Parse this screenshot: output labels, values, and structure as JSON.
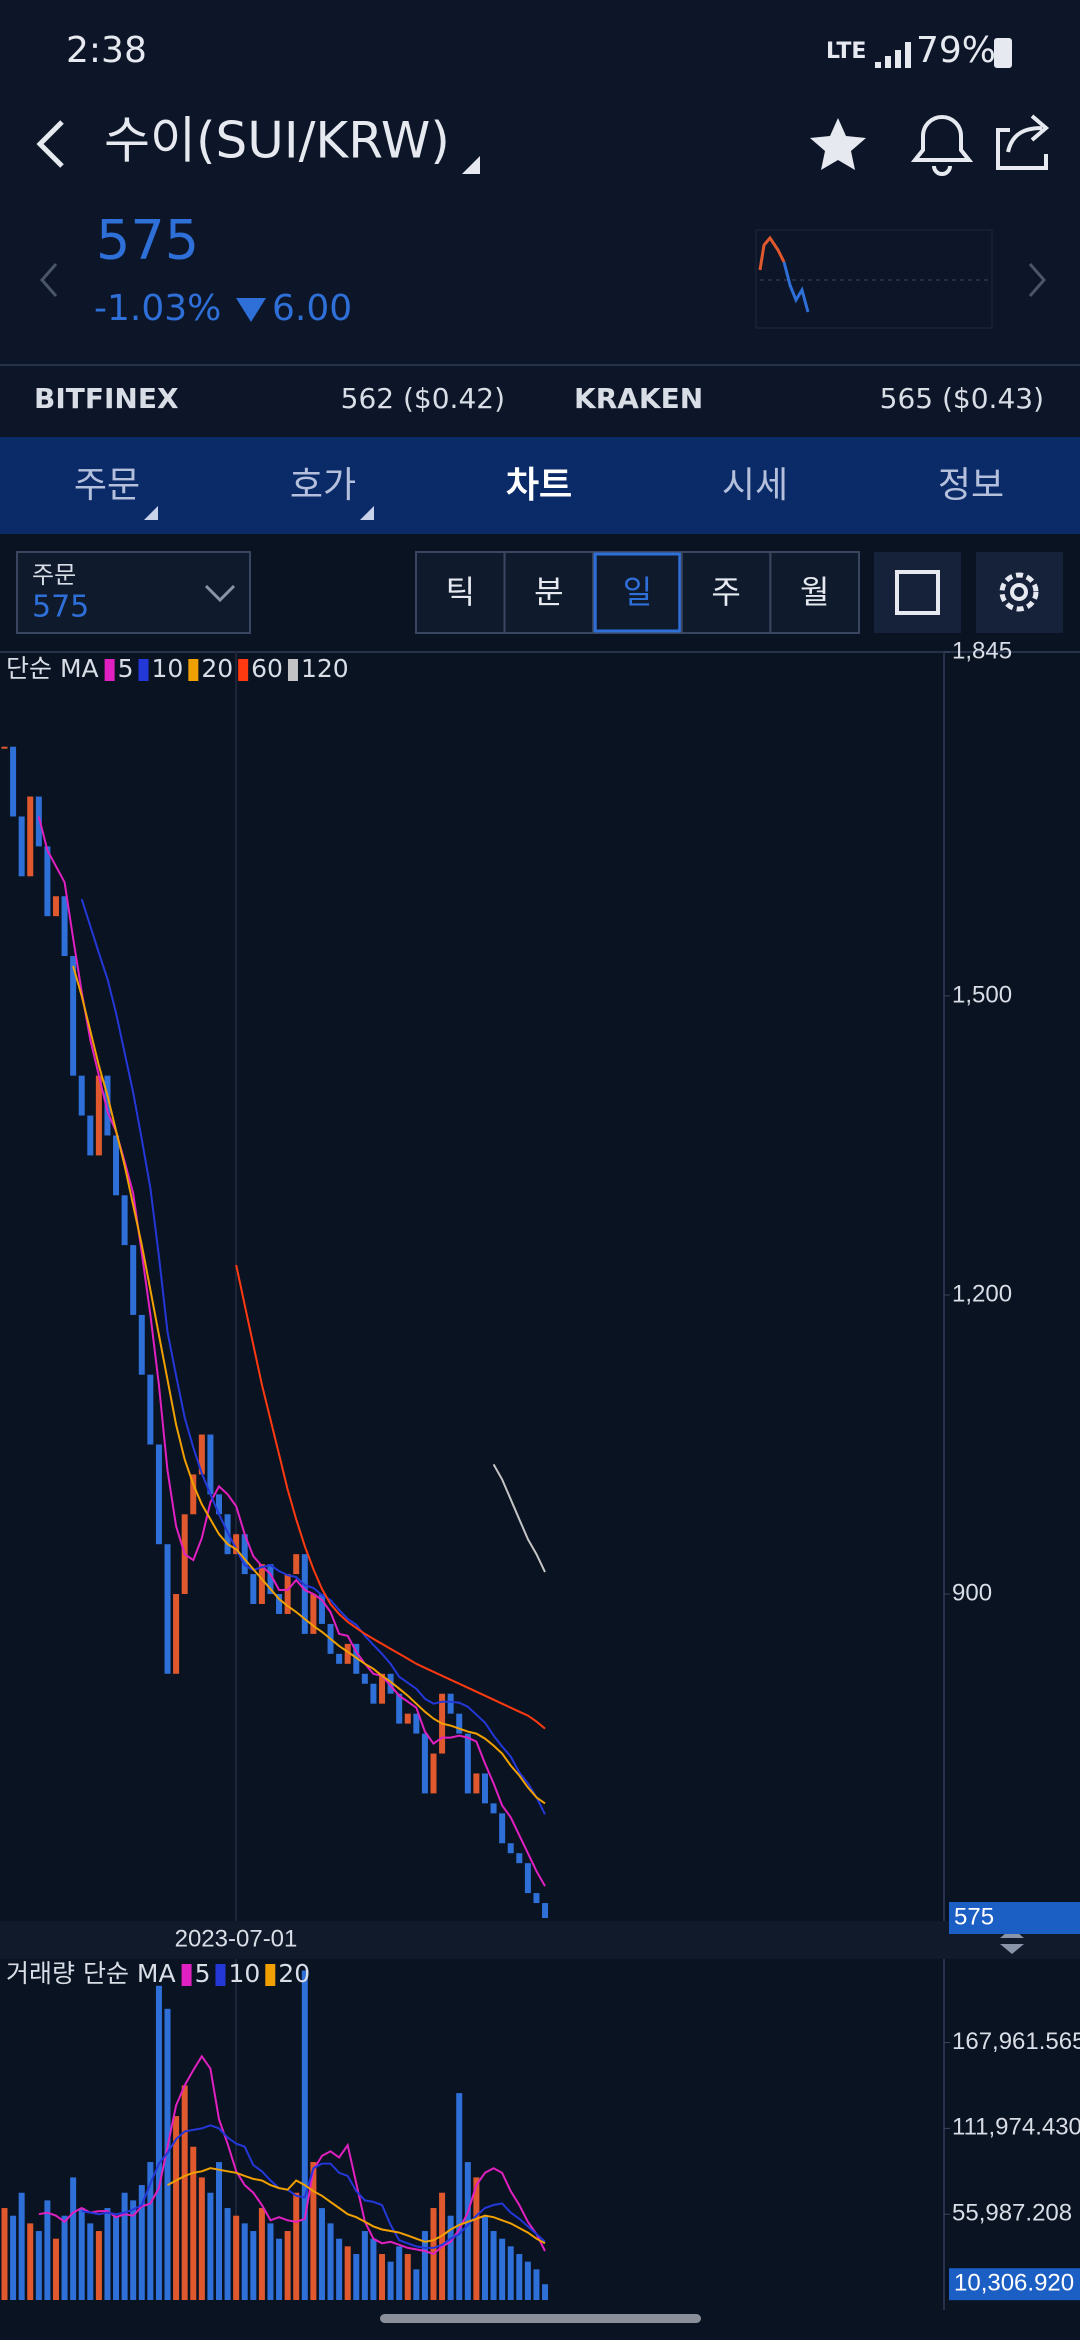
{
  "status_bar": {
    "time": "2:38",
    "network": "LTE",
    "battery": "79%"
  },
  "header": {
    "title": "수이(SUI/KRW)"
  },
  "ticker": {
    "price": "575",
    "change_percent": "-1.03%",
    "change": "6.00"
  },
  "exchanges": [
    {
      "name": "BITFINEX",
      "price": "562 ($0.42)"
    },
    {
      "name": "KRAKEN",
      "price": "565 ($0.43)"
    }
  ],
  "tabs": [
    "주문",
    "호가",
    "차트",
    "시세",
    "정보"
  ],
  "active_tab": 2,
  "order_select": {
    "label": "주문",
    "value": "575"
  },
  "periods": [
    "틱",
    "분",
    "일",
    "주",
    "월"
  ],
  "active_period": 2,
  "chart_data": [
    {
      "type": "candlestick",
      "title": "단순 MA",
      "date_label": "2023-07-01",
      "up_color": "#e0592e",
      "down_color": "#2e6fd8",
      "values": [
        1750,
        1680,
        1620,
        1700,
        1650,
        1580,
        1600,
        1540,
        1420,
        1380,
        1340,
        1420,
        1360,
        1300,
        1250,
        1180,
        1120,
        1050,
        950,
        820,
        900,
        980,
        1020,
        1060,
        1000,
        980,
        940,
        960,
        920,
        890,
        930,
        900,
        880,
        920,
        940,
        860,
        900,
        870,
        840,
        830,
        850,
        820,
        810,
        790,
        820,
        800,
        770,
        780,
        760,
        700,
        740,
        800,
        780,
        760,
        700,
        720,
        690,
        680,
        650,
        640,
        630,
        600,
        590,
        575
      ],
      "ylim": [
        572,
        1845
      ],
      "yticks": [
        {
          "value": 1845,
          "label": "1,845"
        },
        {
          "value": 1500,
          "label": "1,500"
        },
        {
          "value": 1200,
          "label": "1,200"
        },
        900
      ],
      "last_price": 575,
      "series": [
        {
          "name": "5",
          "color": "#e020c0",
          "values": [
            null,
            null,
            null,
            null,
            1680,
            1646,
            1630,
            1614,
            1558,
            1504,
            1456,
            1420,
            1384,
            1364,
            1334,
            1302,
            1242,
            1180,
            1110,
            1024,
            968,
            940,
            934,
            956,
            992,
            1008,
            1000,
            988,
            960,
            938,
            928,
            920,
            904,
            904,
            914,
            904,
            900,
            894,
            882,
            860,
            858,
            842,
            830,
            820,
            818,
            808,
            798,
            792,
            786,
            762,
            750,
            756,
            756,
            758,
            756,
            752,
            730,
            710,
            688,
            676,
            658,
            640,
            622,
            607
          ]
        },
        {
          "name": "10",
          "color": "#2438d8",
          "values": [
            null,
            null,
            null,
            null,
            null,
            null,
            null,
            null,
            null,
            1597,
            1570,
            1543,
            1517,
            1483,
            1443,
            1403,
            1356,
            1307,
            1239,
            1163,
            1119,
            1077,
            1047,
            1021,
            1000,
            980,
            962,
            945,
            929,
            924,
            927,
            929,
            923,
            919,
            917,
            909,
            906,
            899,
            894,
            884,
            875,
            869,
            858,
            849,
            840,
            830,
            817,
            811,
            805,
            795,
            790,
            792,
            792,
            791,
            787,
            779,
            771,
            758,
            747,
            737,
            721,
            710,
            696,
            679
          ]
        },
        {
          "name": "20",
          "color": "#f0a000",
          "values": [
            null,
            null,
            null,
            null,
            null,
            null,
            null,
            null,
            1530,
            1500,
            1465,
            1430,
            1400,
            1365,
            1330,
            1290,
            1250,
            1205,
            1160,
            1115,
            1070,
            1035,
            1010,
            990,
            975,
            960,
            950,
            945,
            935,
            925,
            915,
            905,
            895,
            888,
            882,
            875,
            868,
            862,
            855,
            848,
            842,
            836,
            830,
            825,
            818,
            812,
            805,
            798,
            790,
            782,
            775,
            770,
            768,
            765,
            762,
            760,
            755,
            748,
            740,
            728,
            718,
            706,
            696,
            690
          ]
        },
        {
          "name": "60",
          "color": "#ff3a10",
          "values": [
            null,
            null,
            null,
            null,
            null,
            null,
            null,
            null,
            null,
            null,
            null,
            null,
            null,
            null,
            null,
            null,
            null,
            null,
            null,
            null,
            null,
            null,
            null,
            null,
            null,
            null,
            null,
            1230,
            1190,
            1150,
            1110,
            1075,
            1040,
            1005,
            975,
            948,
            925,
            905,
            890,
            880,
            872,
            866,
            860,
            855,
            850,
            845,
            840,
            835,
            830,
            826,
            822,
            818,
            814,
            810,
            806,
            802,
            798,
            794,
            790,
            786,
            782,
            778,
            772,
            765
          ]
        },
        {
          "name": "120",
          "color": "#c4c4c4",
          "values": [
            null,
            null,
            null,
            null,
            null,
            null,
            null,
            null,
            null,
            null,
            null,
            null,
            null,
            null,
            null,
            null,
            null,
            null,
            null,
            null,
            null,
            null,
            null,
            null,
            null,
            null,
            null,
            null,
            null,
            null,
            null,
            null,
            null,
            null,
            null,
            null,
            null,
            null,
            null,
            null,
            null,
            null,
            null,
            null,
            null,
            null,
            null,
            null,
            null,
            null,
            null,
            null,
            null,
            null,
            null,
            null,
            null,
            1030,
            1015,
            995,
            975,
            955,
            940,
            922
          ]
        }
      ]
    },
    {
      "type": "bar",
      "title": "거래량 단순 MA",
      "values": [
        60000,
        55000,
        70000,
        50000,
        45000,
        65000,
        40000,
        55000,
        80000,
        60000,
        50000,
        45000,
        60000,
        55000,
        70000,
        65000,
        75000,
        90000,
        205000,
        190000,
        120000,
        140000,
        100000,
        80000,
        70000,
        90000,
        60000,
        55000,
        50000,
        45000,
        60000,
        50000,
        40000,
        45000,
        70000,
        215000,
        90000,
        60000,
        50000,
        40000,
        35000,
        30000,
        45000,
        40000,
        30000,
        25000,
        35000,
        30000,
        20000,
        45000,
        60000,
        70000,
        55000,
        135000,
        90000,
        80000,
        55000,
        45000,
        40000,
        35000,
        30000,
        25000,
        20000,
        10306.92
      ],
      "ylim": [
        0,
        222500
      ],
      "yticks": [
        {
          "value": 55987.208,
          "label": "55,987.208"
        },
        {
          "value": 111974.43,
          "label": "111,974.430"
        },
        {
          "value": 167961.565,
          "label": "167,961.565"
        }
      ],
      "last_value": {
        "value": 10306.92,
        "label": "10,306.920"
      },
      "series": [
        {
          "name": "5",
          "color": "#e020c0",
          "values": [
            null,
            null,
            null,
            null,
            56000,
            57000,
            55000,
            51000,
            57000,
            60000,
            57000,
            58000,
            58000,
            54000,
            56000,
            55000,
            61000,
            63000,
            73000,
            100000,
            127000,
            140000,
            150000,
            159000,
            151000,
            118000,
            102000,
            84000,
            75000,
            70000,
            62000,
            52000,
            54000,
            52000,
            51000,
            53000,
            85000,
            94000,
            97000,
            93000,
            101000,
            76000,
            51000,
            40000,
            37000,
            38000,
            36000,
            34000,
            33000,
            32000,
            30000,
            35000,
            38000,
            46000,
            57000,
            75000,
            83000,
            86000,
            83000,
            71000,
            62000,
            51000,
            43000,
            32000
          ]
        },
        {
          "name": "10",
          "color": "#2438d8",
          "values": [
            null,
            null,
            null,
            null,
            null,
            null,
            null,
            null,
            null,
            58000,
            57000,
            56000,
            57000,
            56000,
            57000,
            59000,
            62000,
            76000,
            89000,
            96000,
            105000,
            110000,
            111000,
            112000,
            114000,
            112000,
            106000,
            102000,
            100000,
            88000,
            84000,
            78000,
            73000,
            72000,
            68000,
            67000,
            86000,
            89000,
            89000,
            83000,
            81000,
            71000,
            65000,
            64000,
            62000,
            49000,
            39000,
            37000,
            35000,
            34000,
            34000,
            36000,
            40000,
            43000,
            49000,
            55000,
            60000,
            62000,
            63000,
            57000,
            53000,
            48000,
            43000,
            38000
          ]
        },
        {
          "name": "20",
          "color": "#f0a000",
          "values": [
            null,
            null,
            null,
            null,
            null,
            null,
            null,
            null,
            null,
            null,
            null,
            null,
            null,
            null,
            null,
            null,
            null,
            null,
            null,
            75000,
            78000,
            81000,
            83000,
            84000,
            86000,
            85000,
            84000,
            83000,
            81000,
            79000,
            78000,
            75000,
            73000,
            72000,
            78000,
            75000,
            71000,
            68000,
            64000,
            60000,
            56000,
            54000,
            51000,
            48000,
            46000,
            45000,
            44000,
            42000,
            40000,
            38000,
            39000,
            42000,
            46000,
            49000,
            51000,
            53000,
            55000,
            54000,
            52000,
            50000,
            47000,
            44000,
            40000,
            37000
          ]
        }
      ]
    }
  ]
}
